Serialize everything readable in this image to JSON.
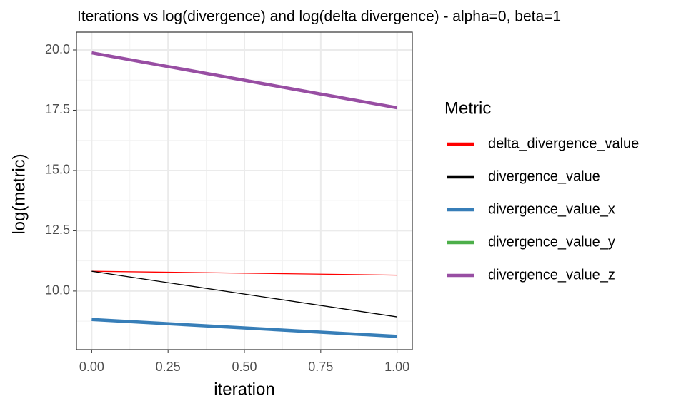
{
  "chart_data": {
    "type": "line",
    "title": "Iterations vs log(divergence) and log(delta divergence) - alpha=0, beta=1",
    "x_label": "iteration",
    "y_label": "log(metric)",
    "x": [
      0,
      1
    ],
    "xlim": [
      -0.05,
      1.05
    ],
    "xticks": [
      {
        "value": 0,
        "label": "0.00"
      },
      {
        "value": 0.25,
        "label": "0.25"
      },
      {
        "value": 0.5,
        "label": "0.50"
      },
      {
        "value": 0.75,
        "label": "0.75"
      },
      {
        "value": 1,
        "label": "1.00"
      }
    ],
    "ylim": [
      7.57,
      20.74
    ],
    "yticks": [
      {
        "value": 10,
        "label": "10.0"
      },
      {
        "value": 12.5,
        "label": "12.5"
      },
      {
        "value": 15,
        "label": "15.0"
      },
      {
        "value": 17.5,
        "label": "17.5"
      },
      {
        "value": 20,
        "label": "20.0"
      }
    ],
    "grid": true,
    "legend_title": "Metric",
    "legend_position": "right",
    "series": [
      {
        "name": "delta_divergence_value",
        "color": "#ff0000",
        "width": 1.3,
        "values": [
          10.82,
          10.66
        ]
      },
      {
        "name": "divergence_value",
        "color": "#000000",
        "width": 1.3,
        "values": [
          10.82,
          8.93
        ]
      },
      {
        "name": "divergence_value_x",
        "color": "#377eb8",
        "width": 4.5,
        "values": [
          8.82,
          8.12
        ]
      },
      {
        "name": "divergence_value_y",
        "color": "#4daf4a",
        "width": 4.5,
        "values": [
          null,
          null
        ]
      },
      {
        "name": "divergence_value_z",
        "color": "#984ea3",
        "width": 4.5,
        "values": [
          19.88,
          17.6
        ]
      }
    ]
  }
}
